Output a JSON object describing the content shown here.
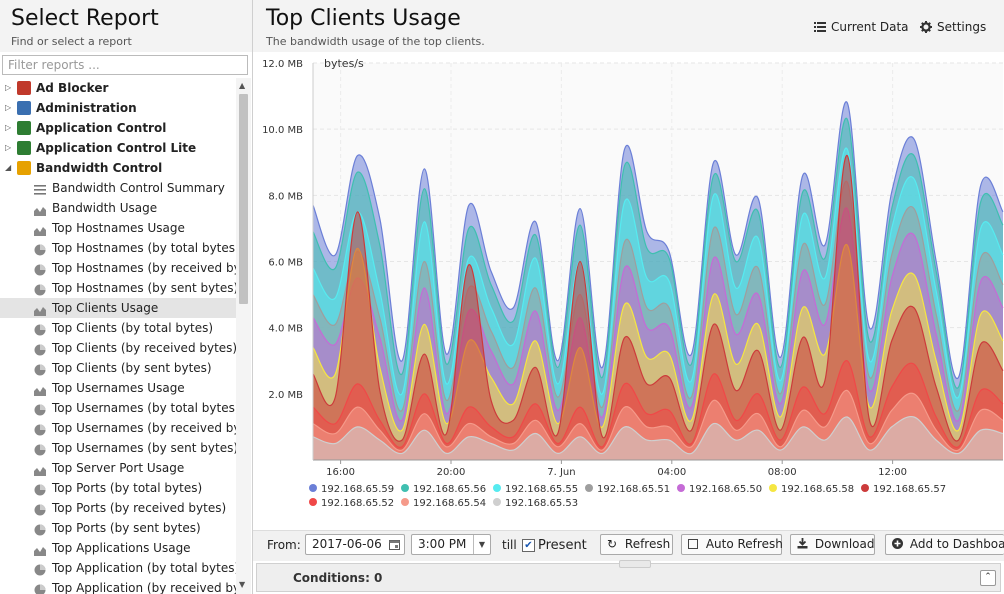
{
  "sidebar": {
    "title": "Select Report",
    "subtitle": "Find or select a report",
    "filter_placeholder": "Filter reports ...",
    "categories": [
      {
        "label": "Ad Blocker",
        "expanded": false,
        "icon": "ads-icon",
        "color": "#c0392b"
      },
      {
        "label": "Administration",
        "expanded": false,
        "icon": "admin-icon",
        "color": "#3a6fb0"
      },
      {
        "label": "Application Control",
        "expanded": false,
        "icon": "app-control-icon",
        "color": "#2e7d32"
      },
      {
        "label": "Application Control Lite",
        "expanded": false,
        "icon": "app-control-lite-icon",
        "color": "#2e7d32"
      },
      {
        "label": "Bandwidth Control",
        "expanded": true,
        "icon": "bandwidth-control-icon",
        "color": "#e6a100"
      }
    ],
    "reports": [
      {
        "label": "Bandwidth Control Summary",
        "icon": "text-report-icon"
      },
      {
        "label": "Bandwidth Usage",
        "icon": "area-chart-icon"
      },
      {
        "label": "Top Hostnames Usage",
        "icon": "area-chart-icon"
      },
      {
        "label": "Top Hostnames (by total bytes)",
        "icon": "pie-chart-icon"
      },
      {
        "label": "Top Hostnames (by received byt...",
        "icon": "pie-chart-icon"
      },
      {
        "label": "Top Hostnames (by sent bytes)",
        "icon": "pie-chart-icon"
      },
      {
        "label": "Top Clients Usage",
        "icon": "area-chart-icon",
        "selected": true
      },
      {
        "label": "Top Clients (by total bytes)",
        "icon": "pie-chart-icon"
      },
      {
        "label": "Top Clients (by received bytes)",
        "icon": "pie-chart-icon"
      },
      {
        "label": "Top Clients (by sent bytes)",
        "icon": "pie-chart-icon"
      },
      {
        "label": "Top Usernames Usage",
        "icon": "area-chart-icon"
      },
      {
        "label": "Top Usernames (by total bytes)",
        "icon": "pie-chart-icon"
      },
      {
        "label": "Top Usernames (by received bytes)",
        "icon": "pie-chart-icon"
      },
      {
        "label": "Top Usernames (by sent bytes)",
        "icon": "pie-chart-icon"
      },
      {
        "label": "Top Server Port Usage",
        "icon": "area-chart-icon"
      },
      {
        "label": "Top Ports (by total bytes)",
        "icon": "pie-chart-icon"
      },
      {
        "label": "Top Ports (by received bytes)",
        "icon": "pie-chart-icon"
      },
      {
        "label": "Top Ports (by sent bytes)",
        "icon": "pie-chart-icon"
      },
      {
        "label": "Top Applications Usage",
        "icon": "area-chart-icon"
      },
      {
        "label": "Top Application (by total bytes)",
        "icon": "pie-chart-icon"
      },
      {
        "label": "Top Application (by received bytes)",
        "icon": "pie-chart-icon"
      }
    ]
  },
  "header": {
    "title": "Top Clients Usage",
    "subtitle": "The bandwidth usage of the top clients.",
    "current_data_label": "Current Data",
    "settings_label": "Settings"
  },
  "chart_data": {
    "type": "area",
    "stacked": false,
    "ylabel": "bytes/s",
    "y_ticks": [
      "2.0 MB",
      "4.0 MB",
      "6.0 MB",
      "8.0 MB",
      "10.0 MB",
      "12.0 MB"
    ],
    "ylim": [
      0,
      12
    ],
    "y_unit": "MB",
    "x_ticks": [
      "16:00",
      "20:00",
      "7. Jun",
      "04:00",
      "08:00",
      "12:00"
    ],
    "x_range": [
      "2017-06-06 15:00",
      "2017-06-07 15:00"
    ],
    "legend_position": "bottom",
    "series": [
      {
        "name": "192.168.65.59",
        "color": "#6b7fd7",
        "values": [
          7.7,
          6.2,
          9.2,
          7.3,
          3.0,
          8.8,
          3.2,
          7.7,
          5.7,
          4.6,
          7.2,
          3.0,
          7.6,
          2.8,
          9.4,
          6.9,
          6.3,
          3.2,
          9.0,
          6.2,
          7.9,
          3.1,
          8.6,
          6.5,
          10.8,
          4.0,
          8.1,
          9.7,
          6.0,
          2.5,
          8.3,
          7.5
        ]
      },
      {
        "name": "192.168.65.56",
        "color": "#3fbfb0",
        "values": [
          6.9,
          5.8,
          8.7,
          6.5,
          2.6,
          8.2,
          2.9,
          7.0,
          5.3,
          4.2,
          6.8,
          2.8,
          7.1,
          2.5,
          8.9,
          6.4,
          6.1,
          2.9,
          8.6,
          6.0,
          7.5,
          2.8,
          8.1,
          6.1,
          10.3,
          3.6,
          7.6,
          9.2,
          5.7,
          2.2,
          7.8,
          7.1
        ]
      },
      {
        "name": "192.168.65.55",
        "color": "#56ebf0",
        "values": [
          5.8,
          4.9,
          7.5,
          5.1,
          2.0,
          7.2,
          2.3,
          6.1,
          4.6,
          3.5,
          6.1,
          2.3,
          6.0,
          2.0,
          7.8,
          5.5,
          5.4,
          2.4,
          8.0,
          5.2,
          6.7,
          2.4,
          7.4,
          5.5,
          9.4,
          3.0,
          7.0,
          8.5,
          5.1,
          1.9,
          7.0,
          6.2
        ]
      },
      {
        "name": "192.168.65.51",
        "color": "#9e9e9e",
        "values": [
          5.0,
          4.1,
          6.3,
          4.3,
          1.5,
          6.0,
          1.8,
          5.2,
          3.9,
          2.8,
          5.2,
          1.9,
          5.0,
          1.6,
          6.6,
          4.6,
          4.6,
          1.9,
          7.0,
          4.4,
          5.8,
          2.0,
          6.5,
          4.7,
          8.4,
          2.5,
          6.2,
          7.6,
          4.4,
          1.5,
          6.1,
          5.3
        ]
      },
      {
        "name": "192.168.65.50",
        "color": "#c56bd6",
        "values": [
          4.3,
          3.5,
          5.5,
          3.7,
          1.2,
          5.2,
          1.4,
          4.5,
          3.3,
          2.3,
          4.5,
          1.5,
          4.3,
          1.3,
          5.8,
          4.0,
          4.0,
          1.6,
          6.1,
          3.8,
          5.0,
          1.7,
          5.7,
          4.1,
          7.6,
          2.1,
          5.5,
          6.8,
          3.8,
          1.2,
          5.4,
          4.6
        ]
      },
      {
        "name": "192.168.65.58",
        "color": "#f5e642",
        "values": [
          3.4,
          2.6,
          6.4,
          2.8,
          0.9,
          4.1,
          1.1,
          3.6,
          2.5,
          1.7,
          3.6,
          1.1,
          3.4,
          1.0,
          4.7,
          3.1,
          3.2,
          1.2,
          5.0,
          2.9,
          4.1,
          1.3,
          4.6,
          3.2,
          6.5,
          1.6,
          4.5,
          5.6,
          3.0,
          0.9,
          4.4,
          3.6
        ]
      },
      {
        "name": "192.168.65.57",
        "color": "#cc3b3b",
        "values": [
          2.6,
          1.9,
          7.5,
          2.1,
          0.6,
          3.2,
          0.8,
          5.9,
          1.8,
          1.2,
          2.8,
          0.8,
          6.0,
          0.7,
          3.7,
          2.3,
          2.5,
          0.9,
          4.1,
          2.1,
          3.3,
          0.9,
          3.7,
          2.4,
          9.2,
          1.2,
          3.6,
          4.6,
          2.2,
          0.6,
          3.5,
          2.7
        ]
      },
      {
        "name": "192.168.65.52",
        "color": "#f04848",
        "values": [
          1.6,
          1.1,
          2.3,
          1.2,
          0.4,
          2.0,
          0.5,
          1.6,
          1.0,
          0.7,
          1.7,
          0.5,
          1.6,
          0.4,
          2.3,
          1.4,
          1.5,
          0.5,
          2.6,
          1.2,
          2.0,
          0.6,
          2.2,
          1.4,
          3.0,
          0.7,
          2.2,
          2.9,
          1.3,
          0.4,
          2.1,
          1.7
        ]
      },
      {
        "name": "192.168.65.54",
        "color": "#f59a8a",
        "values": [
          1.1,
          0.8,
          1.6,
          0.9,
          0.3,
          1.4,
          0.4,
          1.1,
          0.7,
          0.5,
          1.2,
          0.4,
          1.1,
          0.3,
          1.6,
          1.0,
          1.0,
          0.4,
          1.8,
          0.9,
          1.4,
          0.4,
          1.5,
          1.0,
          2.1,
          0.5,
          1.5,
          2.0,
          0.9,
          0.3,
          1.5,
          1.2
        ]
      },
      {
        "name": "192.168.65.53",
        "color": "#cfcfcf",
        "values": [
          0.7,
          0.5,
          1.0,
          0.6,
          0.2,
          0.9,
          0.2,
          0.7,
          0.5,
          0.3,
          0.8,
          0.2,
          0.7,
          0.2,
          1.0,
          0.6,
          0.6,
          0.2,
          1.1,
          0.6,
          0.9,
          0.3,
          1.0,
          0.6,
          1.3,
          0.3,
          1.0,
          1.3,
          0.6,
          0.2,
          0.9,
          0.8
        ]
      }
    ]
  },
  "toolbar": {
    "from_label": "From:",
    "from_date": "2017-06-06",
    "from_time": "3:00 PM",
    "till_label": "till",
    "present_label": "Present",
    "present_checked": true,
    "refresh_label": "Refresh",
    "auto_refresh_label": "Auto Refresh",
    "download_label": "Download",
    "add_dashboard_label": "Add to Dashboard"
  },
  "conditions": {
    "label": "Conditions: 0"
  }
}
